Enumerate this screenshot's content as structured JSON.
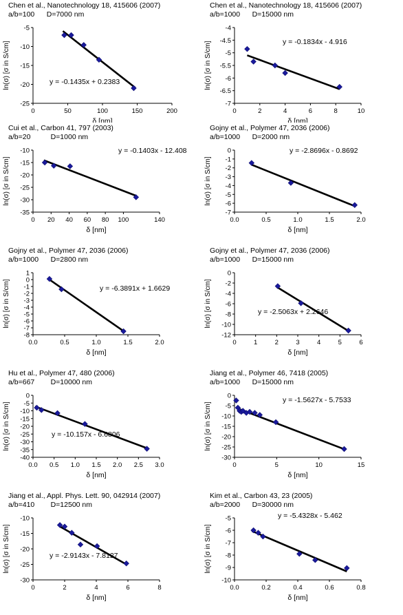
{
  "chart_data": [
    {
      "type": "scatter",
      "citation": "Chen et al., Nanotechnology 18, 415606 (2007)",
      "params": "a/b=100      D=7000 nm",
      "xlabel": "δ [nm]",
      "ylabel": "ln(σ) [σ in S/cm]",
      "xlim": [
        0,
        200
      ],
      "ylim": [
        -25,
        -5
      ],
      "xticks": [
        "0",
        "50",
        "100",
        "150",
        "200"
      ],
      "yticks": [
        "-5",
        "-10",
        "-15",
        "-20",
        "-25"
      ],
      "points": [
        [
          45,
          -7.0
        ],
        [
          55,
          -7.0
        ],
        [
          73,
          -9.6
        ],
        [
          95,
          -13.5
        ],
        [
          145,
          -21.0
        ]
      ],
      "fit": {
        "slope": -0.1435,
        "intercept": 0.2383,
        "x_range": [
          43,
          147
        ]
      },
      "equation": "y = -0.1435x + 0.2383",
      "grid": false
    },
    {
      "type": "scatter",
      "citation": "Chen et al., Nanotechnology 18, 415606 (2007)",
      "params": "a/b=1000      D=15000 nm",
      "xlabel": "δ [nm]",
      "ylabel": "ln(σ) [σ in S/cm]",
      "xlim": [
        0,
        10
      ],
      "ylim": [
        -7,
        -4
      ],
      "xticks": [
        "0",
        "2",
        "4",
        "6",
        "8",
        "10"
      ],
      "yticks": [
        "-4",
        "-4.5",
        "-5",
        "-5.5",
        "-6",
        "-6.5",
        "-7"
      ],
      "points": [
        [
          1.0,
          -4.85
        ],
        [
          1.5,
          -5.35
        ],
        [
          3.2,
          -5.5
        ],
        [
          4.0,
          -5.8
        ],
        [
          8.3,
          -6.35
        ]
      ],
      "fit": {
        "slope": -0.1834,
        "intercept": -4.916,
        "x_range": [
          1.0,
          8.3
        ]
      },
      "equation": "y = -0.1834x - 4.916",
      "grid": false
    },
    {
      "type": "scatter",
      "citation": "Cui et al., Carbon 41, 797 (2003)",
      "params": "a/b=20          D=1000 nm",
      "xlabel": "δ [nm]",
      "ylabel": "ln(σ) [σ in S/cm]",
      "xlim": [
        0,
        140
      ],
      "ylim": [
        -35,
        -10
      ],
      "xticks": [
        "0",
        "20",
        "40",
        "60",
        "80",
        "100",
        "140"
      ],
      "yticks": [
        "-10",
        "-15",
        "-20",
        "-25",
        "-30",
        "-35"
      ],
      "points": [
        [
          13,
          -15.0
        ],
        [
          23,
          -16.3
        ],
        [
          41,
          -16.5
        ],
        [
          114,
          -29.0
        ]
      ],
      "fit": {
        "slope": -0.1403,
        "intercept": -12.408,
        "x_range": [
          12,
          114
        ]
      },
      "equation": "y = -0.1403x - 12.408",
      "grid": false
    },
    {
      "type": "scatter",
      "citation": "Gojny et al., Polymer 47, 2036 (2006)",
      "params": "a/b=1000      D=2000 nm",
      "xlabel": "δ [nm]",
      "ylabel": "ln(σ) [σ in S/cm]",
      "xlim": [
        0,
        2
      ],
      "ylim": [
        -7,
        0
      ],
      "xticks": [
        "0.0",
        "0.5",
        "1.0",
        "1.5",
        "2.0"
      ],
      "yticks": [
        "0",
        "-1",
        "-2",
        "-3",
        "-4",
        "-5",
        "-6",
        "-7"
      ],
      "points": [
        [
          0.27,
          -1.45
        ],
        [
          0.89,
          -3.7
        ],
        [
          1.9,
          -6.2
        ]
      ],
      "fit": {
        "slope": -2.8696,
        "intercept": -0.8692,
        "x_range": [
          0.27,
          1.9
        ]
      },
      "equation": "y = -2.8696x - 0.8692",
      "grid": false
    },
    {
      "type": "scatter",
      "citation": "Gojny et al., Polymer 47, 2036 (2006)",
      "params": "a/b=1000      D=2800 nm",
      "xlabel": "δ [nm]",
      "ylabel": "ln(σ) [σ in S/cm]",
      "xlim": [
        0,
        2
      ],
      "ylim": [
        -8,
        1
      ],
      "xticks": [
        "0.0",
        "0.5",
        "1.0",
        "1.5",
        "2.0"
      ],
      "yticks": [
        "1",
        "0",
        "-1",
        "-2",
        "-3",
        "-4",
        "-5",
        "-6",
        "-7",
        "-8"
      ],
      "points": [
        [
          0.26,
          0.1
        ],
        [
          0.45,
          -1.4
        ],
        [
          1.43,
          -7.5
        ]
      ],
      "fit": {
        "slope": -6.3891,
        "intercept": 1.6629,
        "x_range": [
          0.25,
          1.43
        ]
      },
      "equation": "y = -6.3891x + 1.6629",
      "grid": false
    },
    {
      "type": "scatter",
      "citation": "Gojny et al., Polymer 47, 2036 (2006)",
      "params": "a/b=1000      D=15000 nm",
      "xlabel": "δ [nm]",
      "ylabel": "ln(σ) [σ in S/cm]",
      "xlim": [
        0,
        6
      ],
      "ylim": [
        -12,
        0
      ],
      "xticks": [
        "0",
        "1",
        "2",
        "3",
        "4",
        "5",
        "6"
      ],
      "yticks": [
        "0",
        "-2",
        "-4",
        "-6",
        "-8",
        "-10",
        "-12"
      ],
      "points": [
        [
          2.05,
          -2.6
        ],
        [
          3.15,
          -5.9
        ],
        [
          5.4,
          -11.2
        ]
      ],
      "fit": {
        "slope": -2.5063,
        "intercept": 2.2646,
        "x_range": [
          2.0,
          5.4
        ]
      },
      "equation": "y = -2.5063x + 2.2646",
      "grid": false
    },
    {
      "type": "scatter",
      "citation": "Hu et al., Polymer 47, 480 (2006)",
      "params": "a/b=667        D=10000 nm",
      "xlabel": "δ [nm]",
      "ylabel": "ln(σ) [σ in S/cm]",
      "xlim": [
        0,
        3
      ],
      "ylim": [
        -40,
        0
      ],
      "xticks": [
        "0.0",
        "0.5",
        "1.0",
        "1.5",
        "2.0",
        "2.5",
        "3.0"
      ],
      "yticks": [
        "0",
        "-5",
        "-10",
        "-15",
        "-20",
        "-25",
        "-30",
        "-35",
        "-40"
      ],
      "points": [
        [
          0.09,
          -8.0
        ],
        [
          0.2,
          -9.5
        ],
        [
          0.58,
          -11.5
        ],
        [
          1.23,
          -18.5
        ],
        [
          2.7,
          -34.5
        ]
      ],
      "fit": {
        "slope": -10.157,
        "intercept": -6.6806,
        "x_range": [
          0.05,
          2.7
        ]
      },
      "equation": "y = -10.157x - 6.6806",
      "grid": false
    },
    {
      "type": "scatter",
      "citation": "Jiang et al., Polymer 46, 7418 (2005)",
      "params": "a/b=1000      D=15000 nm",
      "xlabel": "δ [nm]",
      "ylabel": "ln(σ) [σ in S/cm]",
      "xlim": [
        0,
        15
      ],
      "ylim": [
        -30,
        0
      ],
      "xticks": [
        "0",
        "5",
        "10",
        "15"
      ],
      "yticks": [
        "0",
        "-5",
        "-10",
        "-15",
        "-20",
        "-25",
        "-30"
      ],
      "points": [
        [
          0.2,
          -2.5
        ],
        [
          0.4,
          -6.0
        ],
        [
          0.6,
          -7.5
        ],
        [
          0.8,
          -8.0
        ],
        [
          1.0,
          -7.5
        ],
        [
          1.4,
          -8.5
        ],
        [
          1.8,
          -8.0
        ],
        [
          2.4,
          -8.5
        ],
        [
          3.0,
          -9.5
        ],
        [
          4.9,
          -13.0
        ],
        [
          13.0,
          -26.0
        ]
      ],
      "fit": {
        "slope": -1.5627,
        "intercept": -5.7533,
        "x_range": [
          0.3,
          13.0
        ]
      },
      "equation": "y = -1.5627x - 5.7533",
      "grid": false
    },
    {
      "type": "scatter",
      "citation": "Jiang et al., Appl. Phys. Lett. 90, 042914 (2007)",
      "params": "a/b=410        D=12500 nm",
      "xlabel": "δ [nm]",
      "ylabel": "ln(σ) [σ in S/cm]",
      "xlim": [
        0,
        8
      ],
      "ylim": [
        -30,
        -10
      ],
      "xticks": [
        "0",
        "2",
        "4",
        "6",
        "8"
      ],
      "yticks": [
        "-10",
        "-15",
        "-20",
        "-25",
        "-30"
      ],
      "points": [
        [
          1.7,
          -12.3
        ],
        [
          2.0,
          -12.8
        ],
        [
          2.45,
          -14.8
        ],
        [
          3.0,
          -18.6
        ],
        [
          4.05,
          -19.1
        ],
        [
          5.9,
          -24.7
        ]
      ],
      "fit": {
        "slope": -2.9143,
        "intercept": -7.8127,
        "x_range": [
          1.7,
          5.9
        ]
      },
      "equation": "y = -2.9143x - 7.8127",
      "grid": false
    },
    {
      "type": "scatter",
      "citation": "Kim et al., Carbon 43, 23 (2005)",
      "params": "a/b=2000      D=30000 nm",
      "xlabel": "δ [nm]",
      "ylabel": "ln(σ) [σ in S/cm]",
      "xlim": [
        0,
        0.8
      ],
      "ylim": [
        -10,
        -5
      ],
      "xticks": [
        "0.0",
        "0.2",
        "0.4",
        "0.6",
        "0.8"
      ],
      "yticks": [
        "-5",
        "-6",
        "-7",
        "-8",
        "-9",
        "-10"
      ],
      "points": [
        [
          0.12,
          -6.0
        ],
        [
          0.15,
          -6.2
        ],
        [
          0.18,
          -6.5
        ],
        [
          0.41,
          -7.9
        ],
        [
          0.51,
          -8.4
        ],
        [
          0.71,
          -9.05
        ]
      ],
      "fit": {
        "slope": -5.4328,
        "intercept": -5.462,
        "x_range": [
          0.11,
          0.71
        ]
      },
      "equation": "y = -5.4328x - 5.462",
      "grid": false
    }
  ]
}
